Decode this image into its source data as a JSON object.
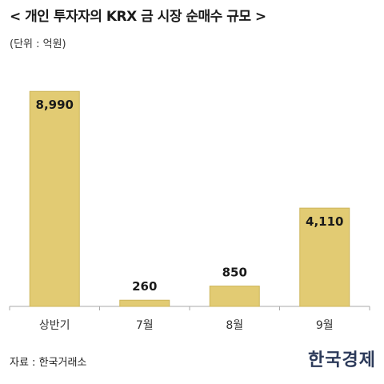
{
  "header": {
    "title": "< 개인 투자자의 KRX 금 시장 순매수 규모 >",
    "unit": "(단위 : 억원)"
  },
  "footer": {
    "source": "자료 : 한국거래소",
    "logo_text": "한국경제"
  },
  "colors": {
    "bar_fill": "#e2cb73",
    "bar_stroke": "#cdb55a",
    "axis": "#aaaaaa",
    "label": "#1a1a1a",
    "logo": "#2c3a5a"
  },
  "chart_data": {
    "type": "bar",
    "title": "< 개인 투자자의 KRX 금 시장 순매수 규모 >",
    "subtitle": "(단위 : 억원)",
    "categories": [
      "상반기",
      "7월",
      "8월",
      "9월"
    ],
    "values": [
      8990,
      260,
      850,
      4110
    ],
    "value_labels": [
      "8,990",
      "260",
      "850",
      "4,110"
    ],
    "xlabel": "",
    "ylabel": "",
    "ylim": [
      0,
      9600
    ],
    "grid": false,
    "legend": "none"
  }
}
